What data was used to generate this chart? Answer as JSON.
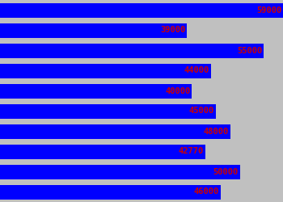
{
  "values": [
    59000,
    39000,
    55000,
    44000,
    40000,
    45000,
    48000,
    42770,
    50000,
    46000
  ],
  "bar_color": "#0000FF",
  "label_color": "#CC0000",
  "background_color": "#C0C0C0",
  "label_fontsize": 7.5,
  "max_val": 59000,
  "fig_width": 3.5,
  "fig_height": 2.5,
  "dpi": 100
}
